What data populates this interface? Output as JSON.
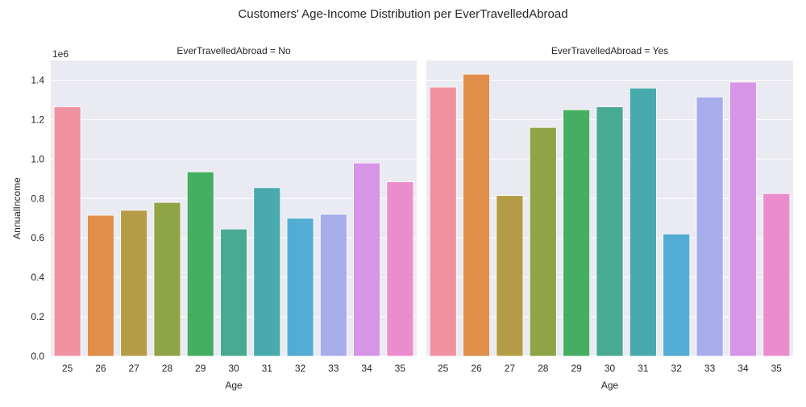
{
  "chart_data": {
    "type": "bar",
    "title": "Customers' Age-Income Distribution per EverTravelledAbroad",
    "ylabel": "AnnualIncome",
    "xlabel": "Age",
    "y_offset_label": "1e6",
    "ylim": [
      0,
      1.5
    ],
    "yticks": [
      0.0,
      0.2,
      0.4,
      0.6,
      0.8,
      1.0,
      1.2,
      1.4
    ],
    "grid": true,
    "categories": [
      "25",
      "26",
      "27",
      "28",
      "29",
      "30",
      "31",
      "32",
      "33",
      "34",
      "35"
    ],
    "colors": [
      "#f0919f",
      "#e08e49",
      "#b49c46",
      "#8fa444",
      "#45ae62",
      "#48ab91",
      "#49aaae",
      "#52acd3",
      "#a7adeb",
      "#d695e6",
      "#e98dcd"
    ],
    "panels": [
      {
        "title": "EverTravelledAbroad = No",
        "values": [
          1.265,
          0.715,
          0.74,
          0.78,
          0.935,
          0.645,
          0.855,
          0.7,
          0.72,
          0.98,
          0.885
        ]
      },
      {
        "title": "EverTravelledAbroad = Yes",
        "values": [
          1.365,
          1.43,
          0.815,
          1.16,
          1.25,
          1.265,
          1.36,
          0.62,
          1.315,
          1.39,
          0.825
        ]
      }
    ]
  }
}
